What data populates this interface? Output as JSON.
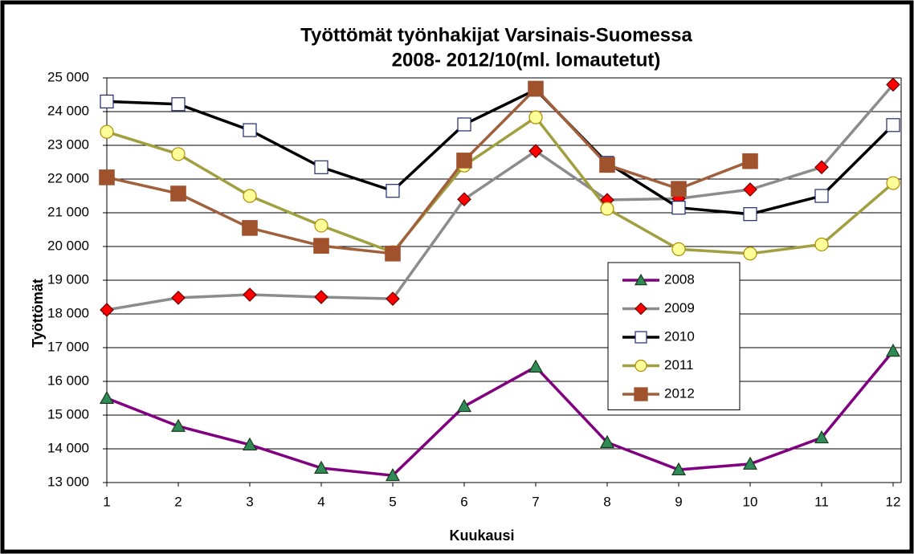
{
  "chart_data": {
    "type": "line",
    "title": "Työttömät työnhakijat Varsinais-Suomessa",
    "subtitle": "2008- 2012/10(ml. lomautetut)",
    "x_label": "Kuukausi",
    "y_label": "Työttömät",
    "x": [
      1,
      2,
      3,
      4,
      5,
      6,
      7,
      8,
      9,
      10,
      11,
      12
    ],
    "xlim": [
      1,
      12
    ],
    "xticks": [
      1,
      2,
      3,
      4,
      5,
      6,
      7,
      8,
      9,
      10,
      11,
      12
    ],
    "ylim": [
      13000,
      25000
    ],
    "yticks": [
      {
        "value": 13000,
        "label": "13 000"
      },
      {
        "value": 14000,
        "label": "14 000"
      },
      {
        "value": 15000,
        "label": "15 000"
      },
      {
        "value": 16000,
        "label": "16 000"
      },
      {
        "value": 17000,
        "label": "17 000"
      },
      {
        "value": 18000,
        "label": "18 000"
      },
      {
        "value": 19000,
        "label": "19 000"
      },
      {
        "value": 20000,
        "label": "20 000"
      },
      {
        "value": 21000,
        "label": "21 000"
      },
      {
        "value": 22000,
        "label": "22 000"
      },
      {
        "value": 23000,
        "label": "23 000"
      },
      {
        "value": 24000,
        "label": "24 000"
      },
      {
        "value": 25000,
        "label": "25 000"
      }
    ],
    "grid": true,
    "legend": "right",
    "series": [
      {
        "name": "2008",
        "color": "#800080",
        "marker": "triangle",
        "marker_color": "#2e8b57",
        "values": [
          15500,
          14670,
          14120,
          13430,
          13210,
          15260,
          16430,
          14190,
          13380,
          13550,
          14330,
          16900
        ]
      },
      {
        "name": "2009",
        "color": "#8c8c8c",
        "marker": "diamond",
        "marker_color": "#ff0000",
        "values": [
          18120,
          18480,
          18570,
          18500,
          18450,
          21400,
          22830,
          21380,
          21420,
          21690,
          22350,
          24800
        ]
      },
      {
        "name": "2010",
        "color": "#000000",
        "marker": "square",
        "marker_color": "#ffffff",
        "values": [
          24300,
          24220,
          23450,
          22350,
          21650,
          23620,
          24650,
          22480,
          21150,
          20960,
          21500,
          23600
        ]
      },
      {
        "name": "2011",
        "color": "#a0a040",
        "marker": "circle",
        "marker_color": "#ffff99",
        "values": [
          23400,
          22740,
          21500,
          20620,
          19830,
          22400,
          23830,
          21120,
          19920,
          19790,
          20060,
          21880
        ]
      },
      {
        "name": "2012",
        "color": "#a0603c",
        "marker": "square",
        "marker_color": "#a0522d",
        "values": [
          22050,
          21570,
          20550,
          20020,
          19790,
          22550,
          24680,
          22420,
          21710,
          22530,
          null,
          null
        ]
      }
    ]
  }
}
